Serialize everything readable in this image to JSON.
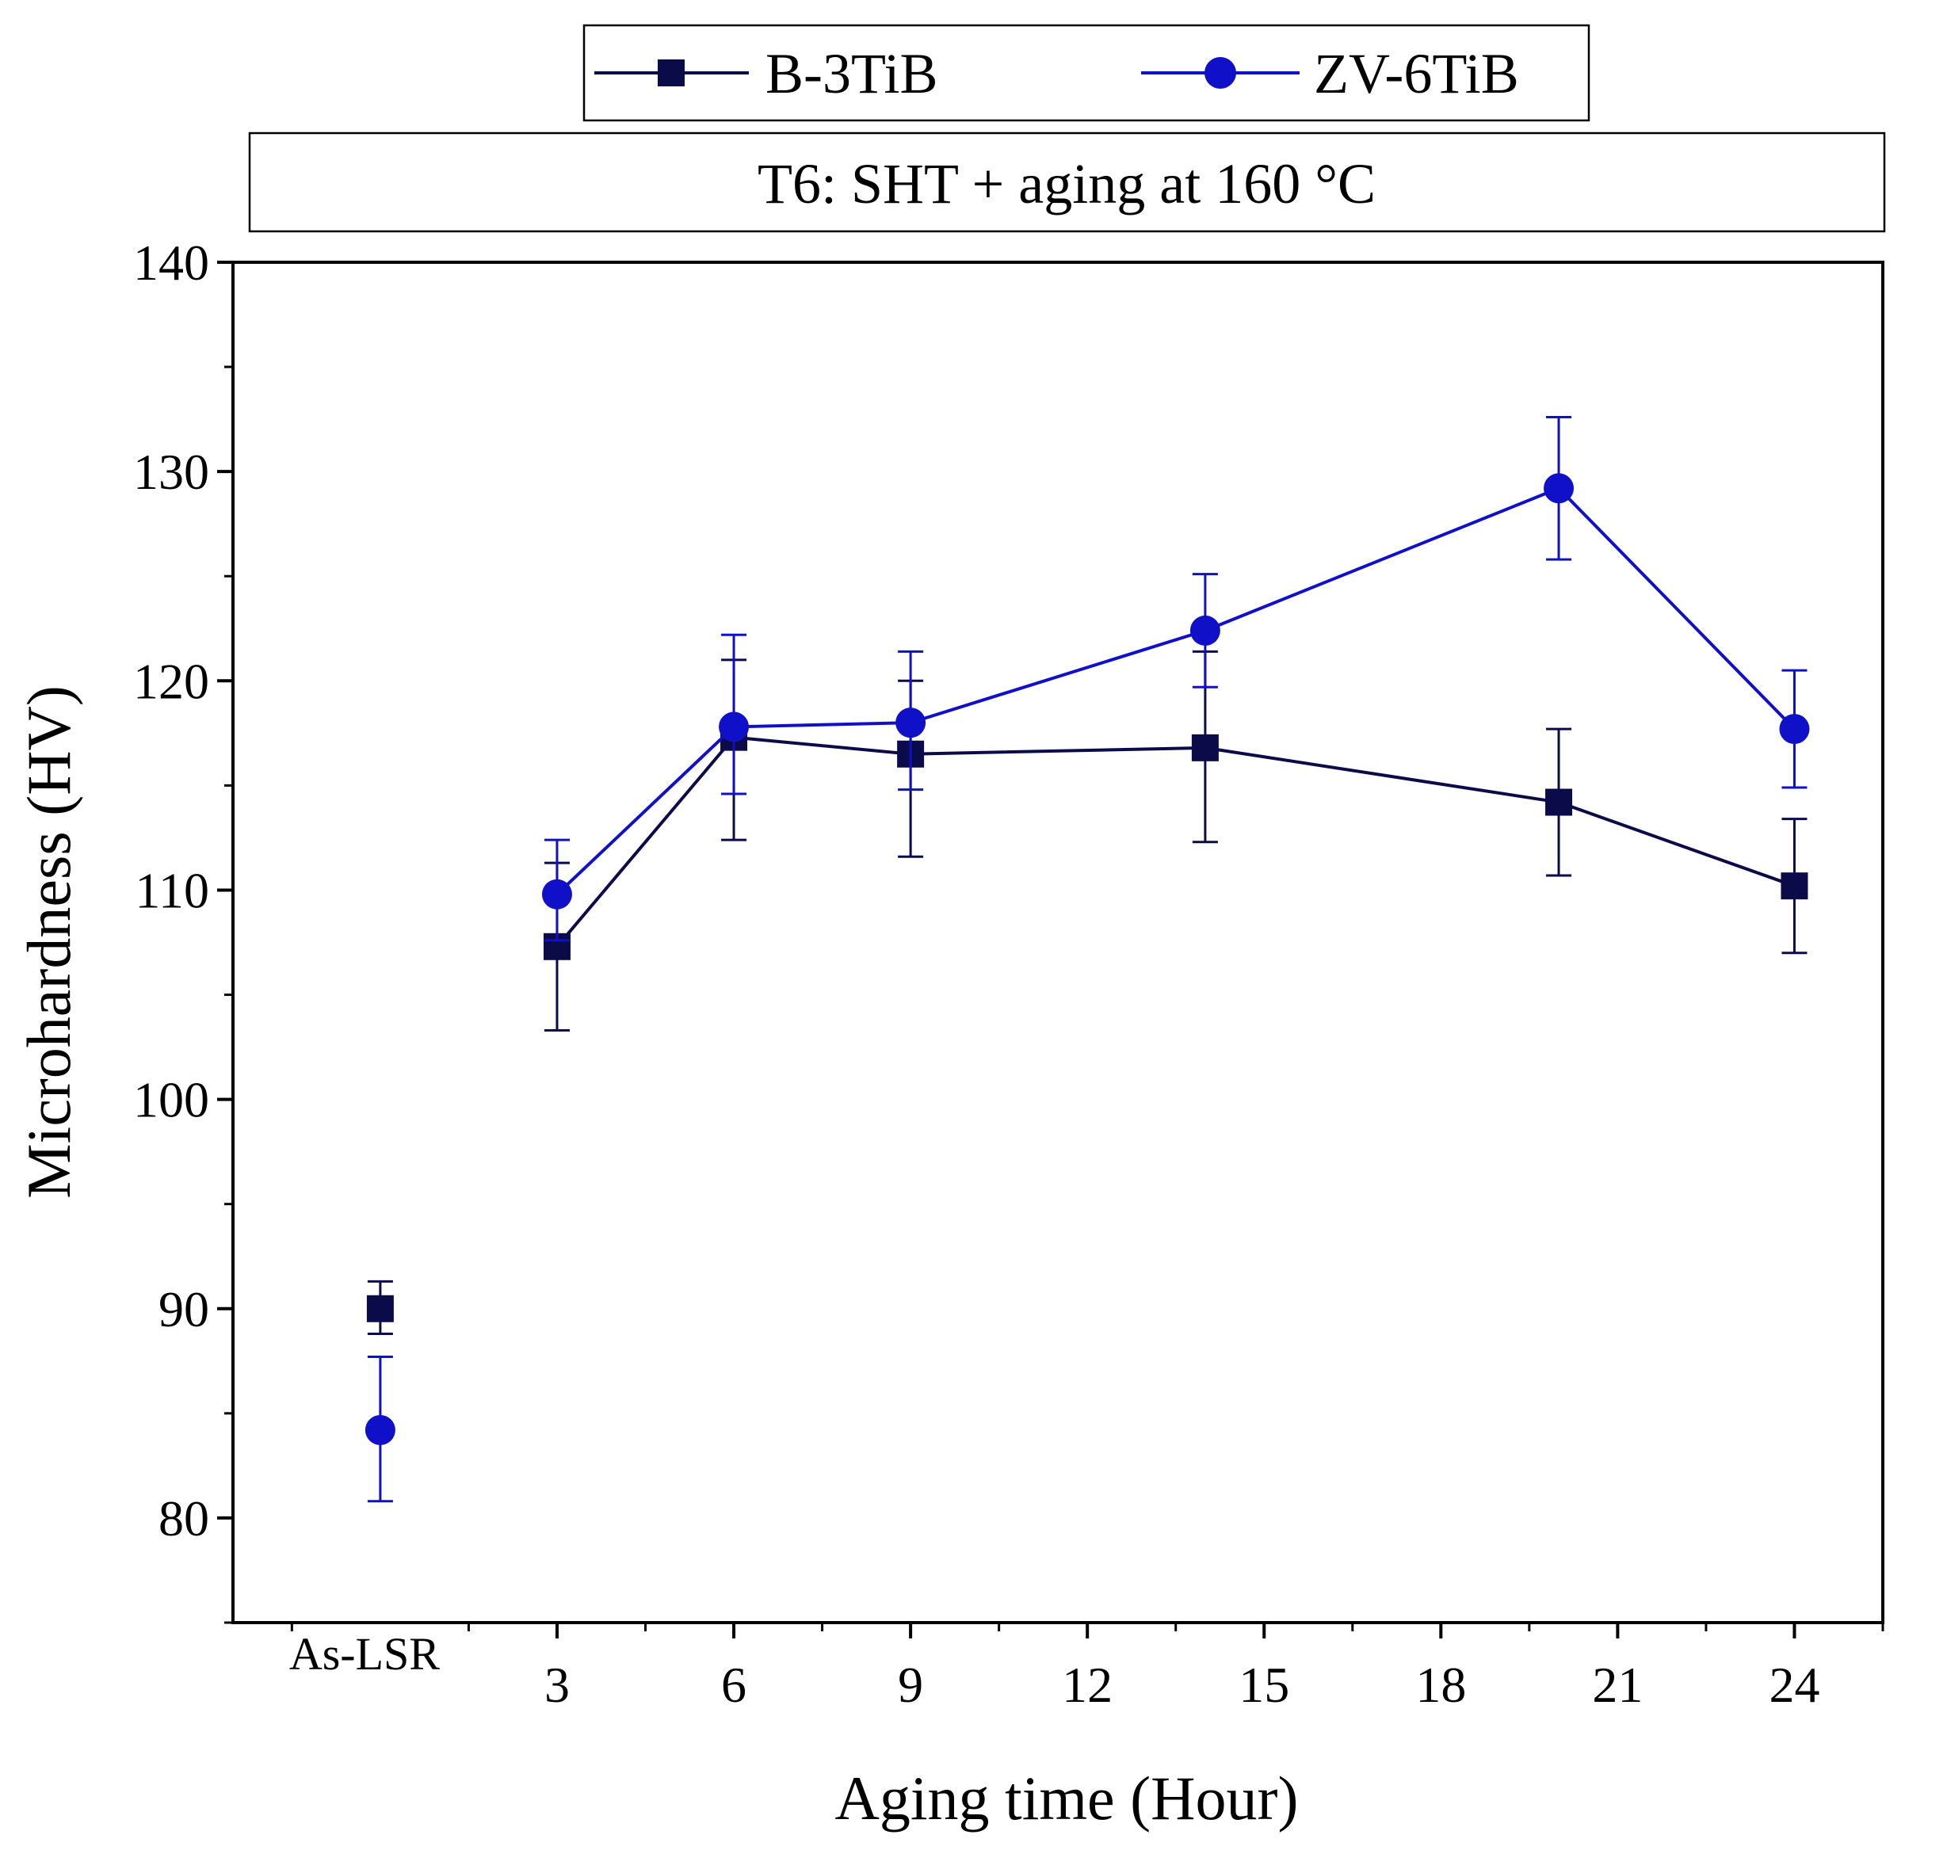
{
  "colors": {
    "background": "#ffffff",
    "axis": "#000000",
    "b3tib": "#0b0b4a",
    "zv6tib": "#1010c8"
  },
  "subtitle_box": "T6: SHT + aging at 160 °C",
  "chart_data": {
    "type": "line",
    "title": "",
    "subtitle": "T6: SHT + aging at 160 °C",
    "xlabel": "Aging time (Hour)",
    "ylabel": "Microhardness (HV)",
    "xlim": [
      -2.5,
      25.5
    ],
    "ylim": [
      75,
      140
    ],
    "x_ticks": [
      3,
      6,
      9,
      12,
      15,
      18,
      21,
      24
    ],
    "x_tick_labels": [
      "3",
      "6",
      "9",
      "12",
      "15",
      "18",
      "21",
      "24"
    ],
    "y_ticks": [
      80,
      90,
      100,
      110,
      120,
      130,
      140
    ],
    "y_tick_labels": [
      "80",
      "90",
      "100",
      "110",
      "120",
      "130",
      "140"
    ],
    "category_label": {
      "x": 0,
      "label": "As-LSR"
    },
    "grid": false,
    "legend_position": "top-center",
    "series": [
      {
        "name": "B-3TiB",
        "marker": "square",
        "color": "#0b0b4a",
        "points": [
          {
            "x": 0,
            "y": 90.0,
            "err_low": 88.8,
            "err_high": 91.3,
            "connected": false
          },
          {
            "x": 3,
            "y": 107.3,
            "err_low": 103.3,
            "err_high": 111.3,
            "connected": true
          },
          {
            "x": 6,
            "y": 117.3,
            "err_low": 112.4,
            "err_high": 121.0,
            "connected": true
          },
          {
            "x": 9,
            "y": 116.5,
            "err_low": 111.6,
            "err_high": 120.0,
            "connected": true
          },
          {
            "x": 14,
            "y": 116.8,
            "err_low": 112.3,
            "err_high": 121.4,
            "connected": true
          },
          {
            "x": 20,
            "y": 114.2,
            "err_low": 110.7,
            "err_high": 117.7,
            "connected": true
          },
          {
            "x": 24,
            "y": 110.2,
            "err_low": 107.0,
            "err_high": 113.4,
            "connected": true
          }
        ]
      },
      {
        "name": "ZV-6TiB",
        "marker": "circle",
        "color": "#1010c8",
        "points": [
          {
            "x": 0,
            "y": 84.2,
            "err_low": 80.8,
            "err_high": 87.7,
            "connected": false
          },
          {
            "x": 3,
            "y": 109.8,
            "err_low": 107.6,
            "err_high": 112.4,
            "connected": true
          },
          {
            "x": 6,
            "y": 117.8,
            "err_low": 114.6,
            "err_high": 122.2,
            "connected": true
          },
          {
            "x": 9,
            "y": 118.0,
            "err_low": 114.8,
            "err_high": 121.4,
            "connected": true
          },
          {
            "x": 14,
            "y": 122.4,
            "err_low": 119.7,
            "err_high": 125.1,
            "connected": true
          },
          {
            "x": 20,
            "y": 129.2,
            "err_low": 125.8,
            "err_high": 132.6,
            "connected": true
          },
          {
            "x": 24,
            "y": 117.7,
            "err_low": 114.9,
            "err_high": 120.5,
            "connected": true
          }
        ]
      }
    ]
  }
}
